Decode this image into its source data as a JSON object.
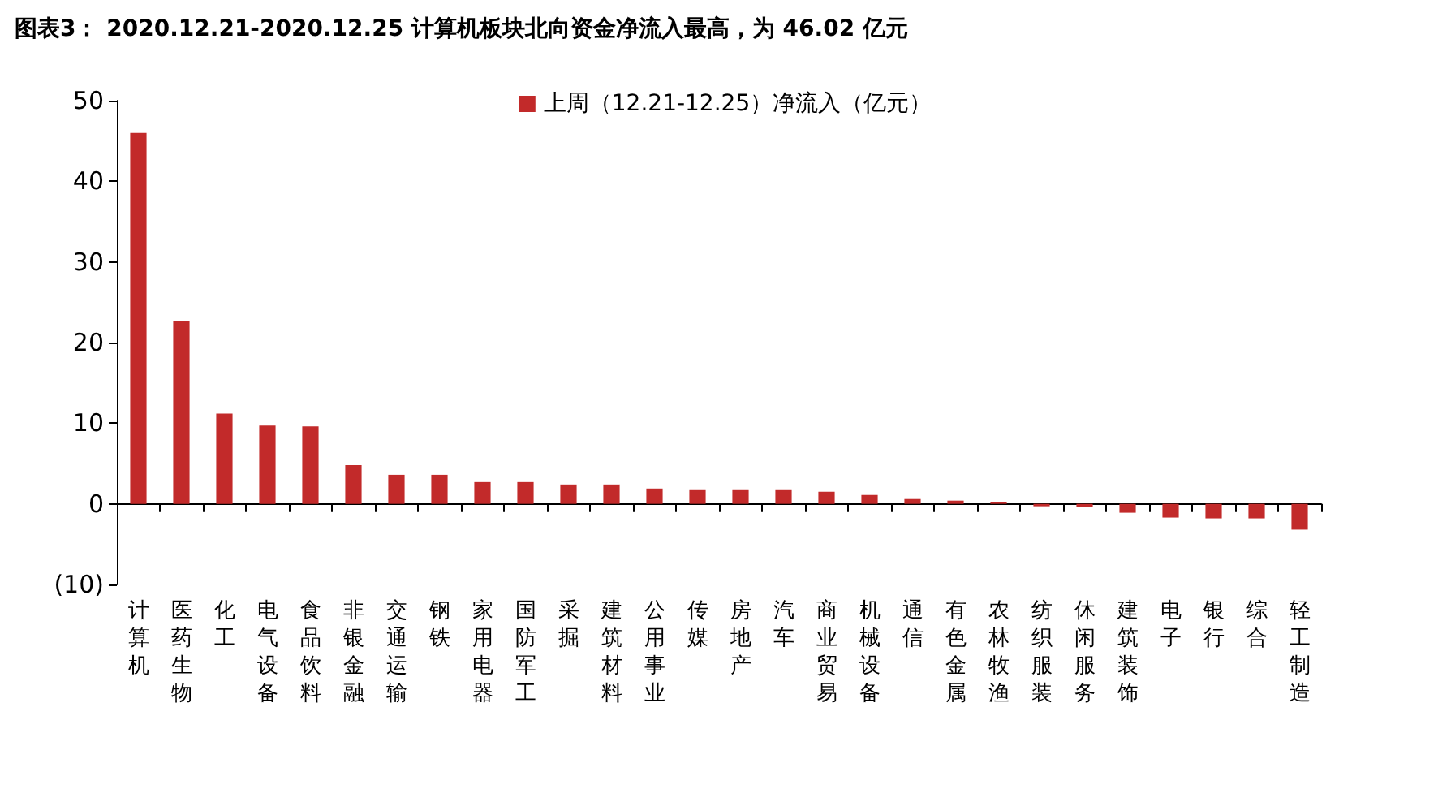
{
  "chart_data": {
    "type": "bar",
    "title": "图表3： 2020.12.21-2020.12.25 计算机板块北向资金净流入最高，为 46.02 亿元",
    "categories": [
      "计算机",
      "医药生物",
      "化工",
      "电气设备",
      "食品饮料",
      "非银金融",
      "交通运输",
      "钢铁",
      "家用电器",
      "国防军工",
      "采掘",
      "建筑材料",
      "公用事业",
      "传媒",
      "房地产",
      "汽车",
      "商业贸易",
      "机械设备",
      "通信",
      "有色金属",
      "农林牧渔",
      "纺织服装",
      "休闲服务",
      "建筑装饰",
      "电子",
      "银行",
      "综合",
      "轻工制造"
    ],
    "series": [
      {
        "name": "上周（12.21-12.25）净流入（亿元）",
        "color": "#c22a2a",
        "values": [
          46.0,
          22.7,
          11.2,
          9.7,
          9.6,
          4.8,
          3.6,
          3.6,
          2.7,
          2.7,
          2.4,
          2.4,
          1.9,
          1.7,
          1.7,
          1.7,
          1.5,
          1.1,
          0.6,
          0.4,
          0.2,
          -0.3,
          -0.4,
          -1.1,
          -1.7,
          -1.8,
          -1.8,
          -3.2
        ]
      }
    ],
    "ylim": [
      -10,
      50
    ],
    "yticks": [
      {
        "value": -10,
        "label": "(10)"
      },
      0,
      10,
      20,
      30,
      40,
      50
    ],
    "legend": "top"
  }
}
